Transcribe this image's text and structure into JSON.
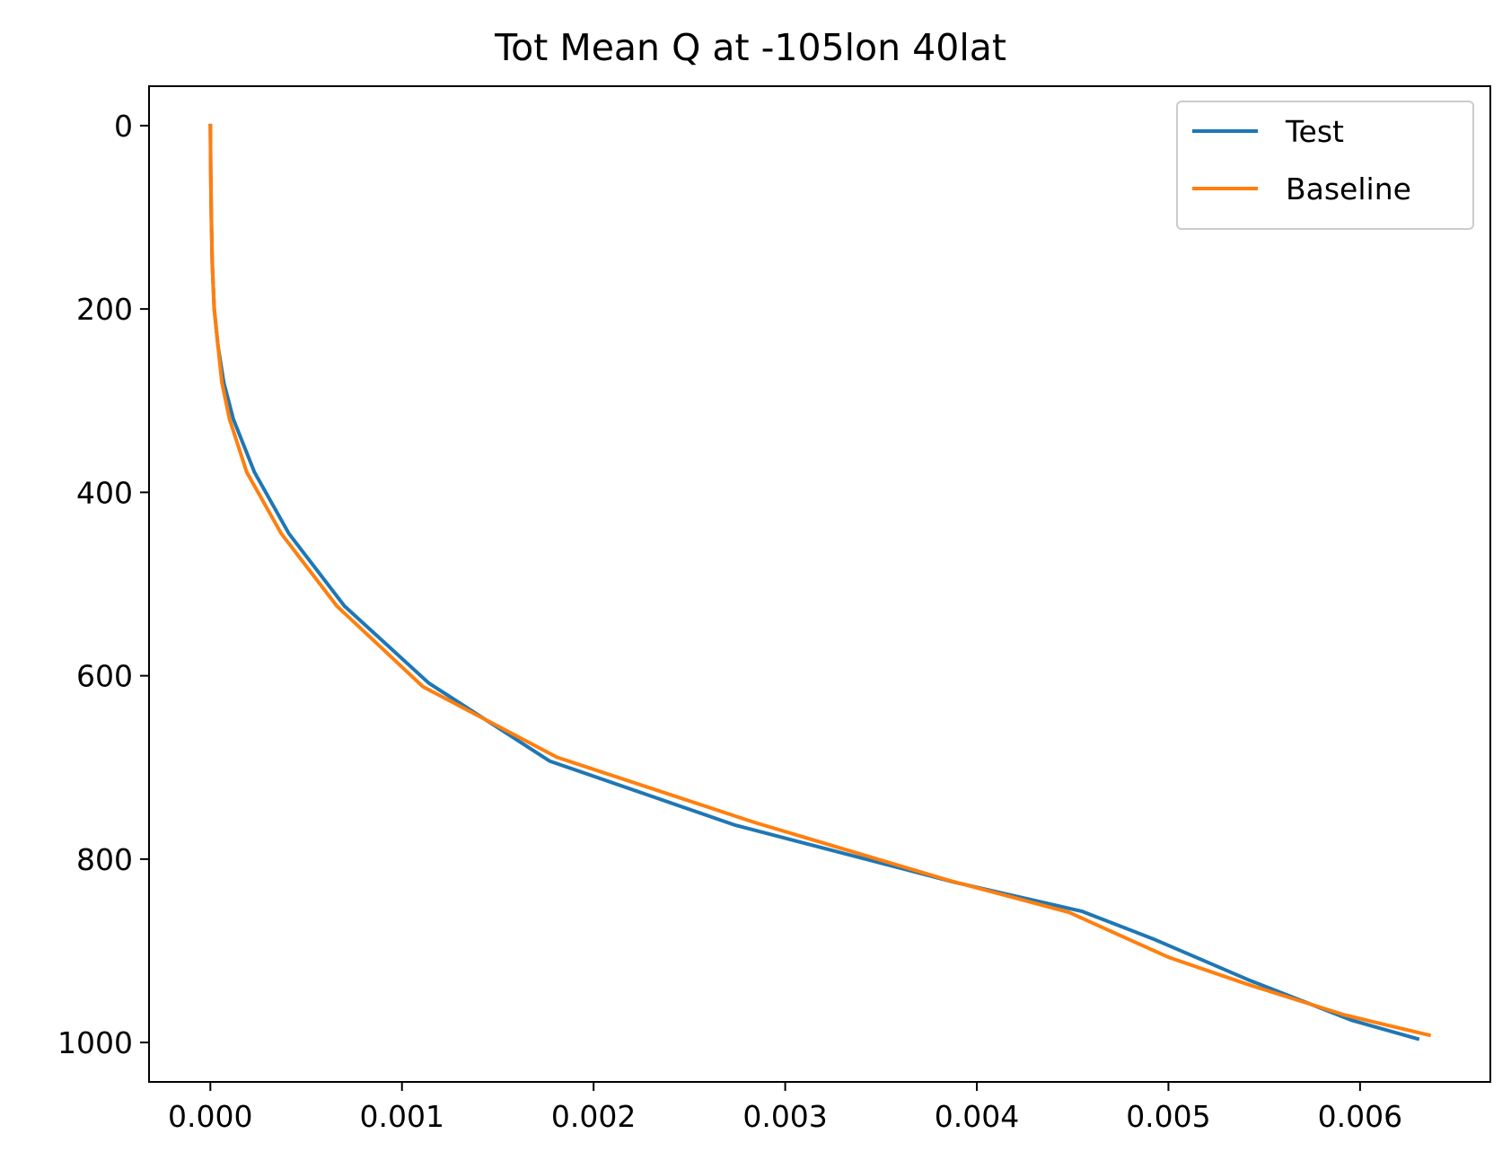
{
  "chart_data": {
    "type": "line",
    "title": "Tot Mean Q at -105lon 40lat",
    "xlabel": "",
    "ylabel": "",
    "xlim": [
      -0.00032,
      0.00668
    ],
    "ylim": [
      1043,
      -43
    ],
    "y_inverted": true,
    "xticks": [
      0.0,
      0.001,
      0.002,
      0.003,
      0.004,
      0.005,
      0.006
    ],
    "xtick_labels": [
      "0.000",
      "0.001",
      "0.002",
      "0.003",
      "0.004",
      "0.005",
      "0.006"
    ],
    "yticks": [
      0,
      200,
      400,
      600,
      800,
      1000
    ],
    "ytick_labels": [
      "0",
      "200",
      "400",
      "600",
      "800",
      "1000"
    ],
    "grid": false,
    "legend_position": "upper right",
    "series": [
      {
        "name": "Test",
        "color": "#1f77b4",
        "x": [
          0.0,
          2e-06,
          5e-06,
          1e-05,
          2e-05,
          4e-05,
          7e-05,
          0.00012,
          0.00023,
          0.00041,
          0.0007,
          0.00114,
          0.00177,
          0.00274,
          0.00388,
          0.00455,
          0.00492,
          0.00542,
          0.00596,
          0.0063
        ],
        "y": [
          0,
          50,
          100,
          150,
          200,
          240,
          280,
          320,
          378,
          445,
          524,
          608,
          693,
          763,
          825,
          857,
          887,
          932,
          976,
          996
        ]
      },
      {
        "name": "Baseline",
        "color": "#ff7f0e",
        "x": [
          0.0,
          2e-06,
          5e-06,
          1e-05,
          2e-05,
          4e-05,
          6e-05,
          0.0001,
          0.00019,
          0.00037,
          0.00066,
          0.00111,
          0.00181,
          0.00284,
          0.00385,
          0.00448,
          0.005,
          0.00542,
          0.00592,
          0.00636
        ],
        "y": [
          0,
          50,
          100,
          150,
          200,
          240,
          280,
          320,
          378,
          445,
          524,
          612,
          689,
          760,
          823,
          858,
          907,
          937,
          970,
          992
        ]
      }
    ]
  }
}
